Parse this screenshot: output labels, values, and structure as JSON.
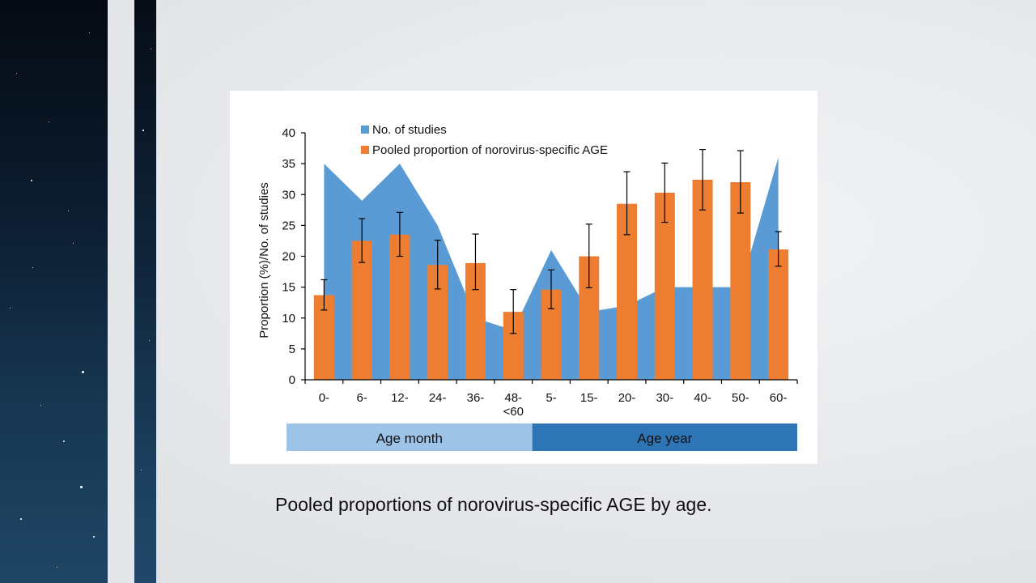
{
  "slide": {
    "caption": "Pooled proportions of norovirus-specific AGE by age."
  },
  "colors": {
    "studies_area": "#5b9bd5",
    "proportion_bars": "#ed7d31",
    "age_month_band": "#9dc3e6",
    "age_year_band": "#2e75b6"
  },
  "chart_data": {
    "type": "bar",
    "title": "",
    "xlabel": "",
    "ylabel": "Proportion (%)/No. of studies",
    "ylim": [
      0,
      40
    ],
    "yticks": [
      0,
      5,
      10,
      15,
      20,
      25,
      30,
      35,
      40
    ],
    "categories": [
      "0-",
      "6-",
      "12-",
      "24-",
      "36-",
      "48-\n<60",
      "5-",
      "15-",
      "20-",
      "30-",
      "40-",
      "50-",
      "60-"
    ],
    "legend_position": "top-left",
    "series": [
      {
        "name": "No. of studies",
        "kind": "area",
        "color": "#5b9bd5",
        "values": [
          35,
          29,
          35,
          25,
          10,
          8,
          21,
          11,
          12,
          15,
          15,
          15,
          36
        ]
      },
      {
        "name": "Pooled proportion of norovirus-specific AGE",
        "kind": "bar",
        "color": "#ed7d31",
        "values": [
          13.7,
          22.5,
          23.5,
          18.6,
          18.9,
          11.0,
          14.6,
          20.0,
          28.5,
          30.3,
          32.4,
          32.0,
          21.1
        ],
        "error_low": [
          11.3,
          19.0,
          20.0,
          14.7,
          14.6,
          7.5,
          11.5,
          14.9,
          23.5,
          25.5,
          27.5,
          27.0,
          18.4
        ],
        "error_high": [
          16.2,
          26.1,
          27.1,
          22.6,
          23.6,
          14.6,
          17.8,
          25.2,
          33.7,
          35.1,
          37.3,
          37.1,
          24.0
        ]
      }
    ],
    "groups": [
      {
        "label": "Age month",
        "from_index": 0,
        "to_index": 5,
        "color": "#9dc3e6"
      },
      {
        "label": "Age year",
        "from_index": 6,
        "to_index": 12,
        "color": "#2e75b6"
      }
    ]
  }
}
